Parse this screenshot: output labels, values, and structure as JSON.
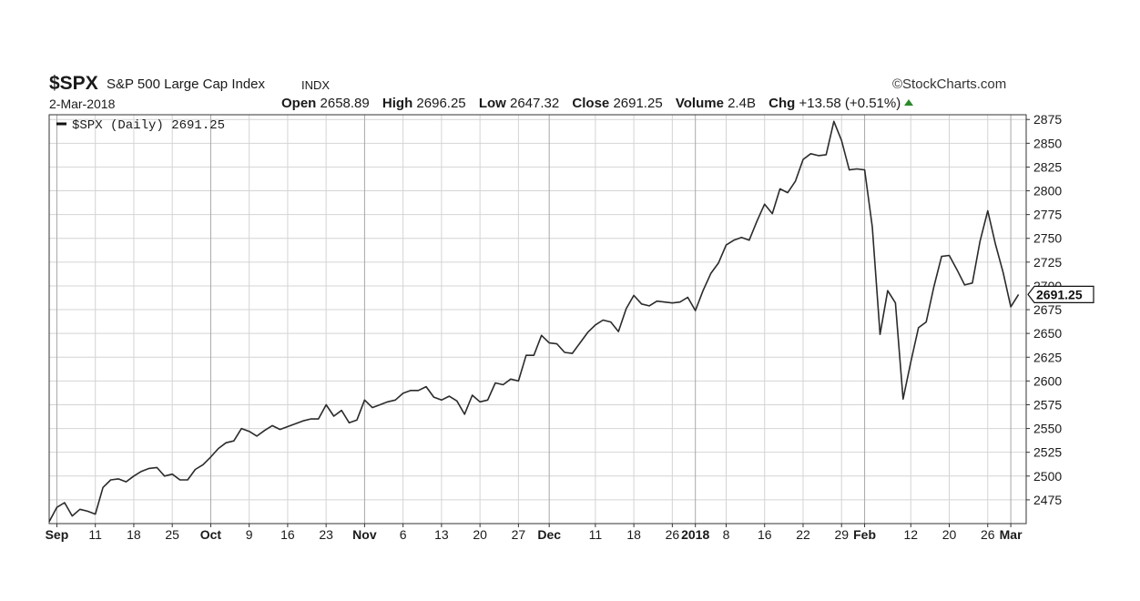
{
  "header": {
    "symbol": "$SPX",
    "name": "S&P 500 Large Cap Index",
    "type": "INDX",
    "date": "2-Mar-2018",
    "brand": "©StockCharts.com",
    "open_label": "Open",
    "open": "2658.89",
    "high_label": "High",
    "high": "2696.25",
    "low_label": "Low",
    "low": "2647.32",
    "close_label": "Close",
    "close": "2691.25",
    "volume_label": "Volume",
    "volume": "2.4B",
    "chg_label": "Chg",
    "chg": "+13.58 (+0.51%)"
  },
  "chart_data": {
    "type": "line",
    "legend": "$SPX (Daily) 2691.25",
    "legend_position": "top-left",
    "last_value_label": "2691.25",
    "ylim": [
      2450,
      2880
    ],
    "yticks": [
      2475,
      2500,
      2525,
      2550,
      2575,
      2600,
      2625,
      2650,
      2675,
      2700,
      2725,
      2750,
      2775,
      2800,
      2825,
      2850,
      2875
    ],
    "ytick_labels": [
      "2475",
      "2500",
      "2525",
      "2550",
      "2575",
      "2600",
      "2625",
      "2650",
      "2675",
      "2700",
      "2725",
      "2750",
      "2775",
      "2800",
      "2825",
      "2850",
      "2875"
    ],
    "y_axis_side": "right",
    "grid": true,
    "x_range": [
      0,
      127
    ],
    "xticks": [
      {
        "i": 1,
        "label": "Sep",
        "bold": true
      },
      {
        "i": 6,
        "label": "11",
        "bold": false
      },
      {
        "i": 11,
        "label": "18",
        "bold": false
      },
      {
        "i": 16,
        "label": "25",
        "bold": false
      },
      {
        "i": 21,
        "label": "Oct",
        "bold": true
      },
      {
        "i": 26,
        "label": "9",
        "bold": false
      },
      {
        "i": 31,
        "label": "16",
        "bold": false
      },
      {
        "i": 36,
        "label": "23",
        "bold": false
      },
      {
        "i": 41,
        "label": "Nov",
        "bold": true
      },
      {
        "i": 46,
        "label": "6",
        "bold": false
      },
      {
        "i": 51,
        "label": "13",
        "bold": false
      },
      {
        "i": 56,
        "label": "20",
        "bold": false
      },
      {
        "i": 61,
        "label": "27",
        "bold": false
      },
      {
        "i": 65,
        "label": "Dec",
        "bold": true
      },
      {
        "i": 71,
        "label": "11",
        "bold": false
      },
      {
        "i": 76,
        "label": "18",
        "bold": false
      },
      {
        "i": 81,
        "label": "26",
        "bold": false
      },
      {
        "i": 84,
        "label": "2018",
        "bold": true
      },
      {
        "i": 88,
        "label": "8",
        "bold": false
      },
      {
        "i": 93,
        "label": "16",
        "bold": false
      },
      {
        "i": 98,
        "label": "22",
        "bold": false
      },
      {
        "i": 103,
        "label": "29",
        "bold": false
      },
      {
        "i": 106,
        "label": "Feb",
        "bold": true
      },
      {
        "i": 112,
        "label": "12",
        "bold": false
      },
      {
        "i": 117,
        "label": "20",
        "bold": false
      },
      {
        "i": 122,
        "label": "26",
        "bold": false
      },
      {
        "i": 125,
        "label": "Mar",
        "bold": true
      }
    ],
    "series": [
      {
        "name": "$SPX (Daily)",
        "color": "#2b2b2b",
        "values": [
          2452,
          2467,
          2472,
          2458,
          2465,
          2463,
          2460,
          2488,
          2496,
          2497,
          2494,
          2500,
          2505,
          2508,
          2509,
          2500,
          2502,
          2496,
          2496,
          2507,
          2512,
          2520,
          2529,
          2535,
          2537,
          2550,
          2547,
          2542,
          2548,
          2553,
          2549,
          2552,
          2555,
          2558,
          2560,
          2560,
          2575,
          2563,
          2569,
          2556,
          2559,
          2580,
          2572,
          2575,
          2578,
          2580,
          2587,
          2590,
          2590,
          2594,
          2583,
          2580,
          2584,
          2579,
          2565,
          2585,
          2578,
          2580,
          2598,
          2596,
          2602,
          2600,
          2627,
          2627,
          2648,
          2640,
          2639,
          2630,
          2629,
          2640,
          2651,
          2659,
          2664,
          2662,
          2652,
          2676,
          2690,
          2681,
          2679,
          2684,
          2683,
          2682,
          2683,
          2688,
          2674,
          2695,
          2713,
          2724,
          2743,
          2748,
          2751,
          2748,
          2768,
          2786,
          2776,
          2802,
          2798,
          2810,
          2833,
          2839,
          2837,
          2838,
          2873,
          2853,
          2822,
          2823,
          2822,
          2762,
          2649,
          2695,
          2682,
          2581,
          2620,
          2656,
          2662,
          2699,
          2731,
          2732,
          2717,
          2701,
          2703,
          2747,
          2779,
          2744,
          2714,
          2678,
          2691
        ]
      }
    ]
  }
}
